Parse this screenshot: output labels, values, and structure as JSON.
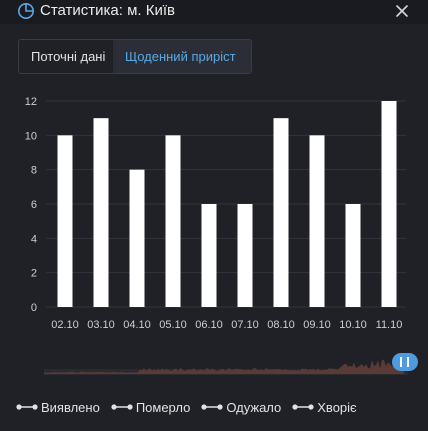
{
  "header": {
    "title": "Статистика: м. Київ",
    "icon": "pie-chart-icon",
    "close_icon": "close-icon"
  },
  "tabs": [
    {
      "label": "Поточні дані",
      "active": false
    },
    {
      "label": "Щоденний приріст",
      "active": true
    }
  ],
  "colors": {
    "background": "#1f2127",
    "bar": "#ffffff",
    "accent": "#5aa9e6",
    "slider_fill": "#5a3a35"
  },
  "chart_data": {
    "type": "bar",
    "categories": [
      "02.10",
      "03.10",
      "04.10",
      "05.10",
      "06.10",
      "07.10",
      "08.10",
      "09.10",
      "10.10",
      "11.10"
    ],
    "values": [
      10,
      11,
      8,
      10,
      6,
      6,
      11,
      10,
      6,
      12
    ],
    "ylim": [
      0,
      12
    ],
    "yticks": [
      0,
      2,
      4,
      6,
      8,
      10,
      12
    ],
    "grid": true,
    "title": "",
    "xlabel": "",
    "ylabel": ""
  },
  "legend": [
    {
      "label": "Виявлено"
    },
    {
      "label": "Померло"
    },
    {
      "label": "Одужало"
    },
    {
      "label": "Хворіє"
    }
  ]
}
